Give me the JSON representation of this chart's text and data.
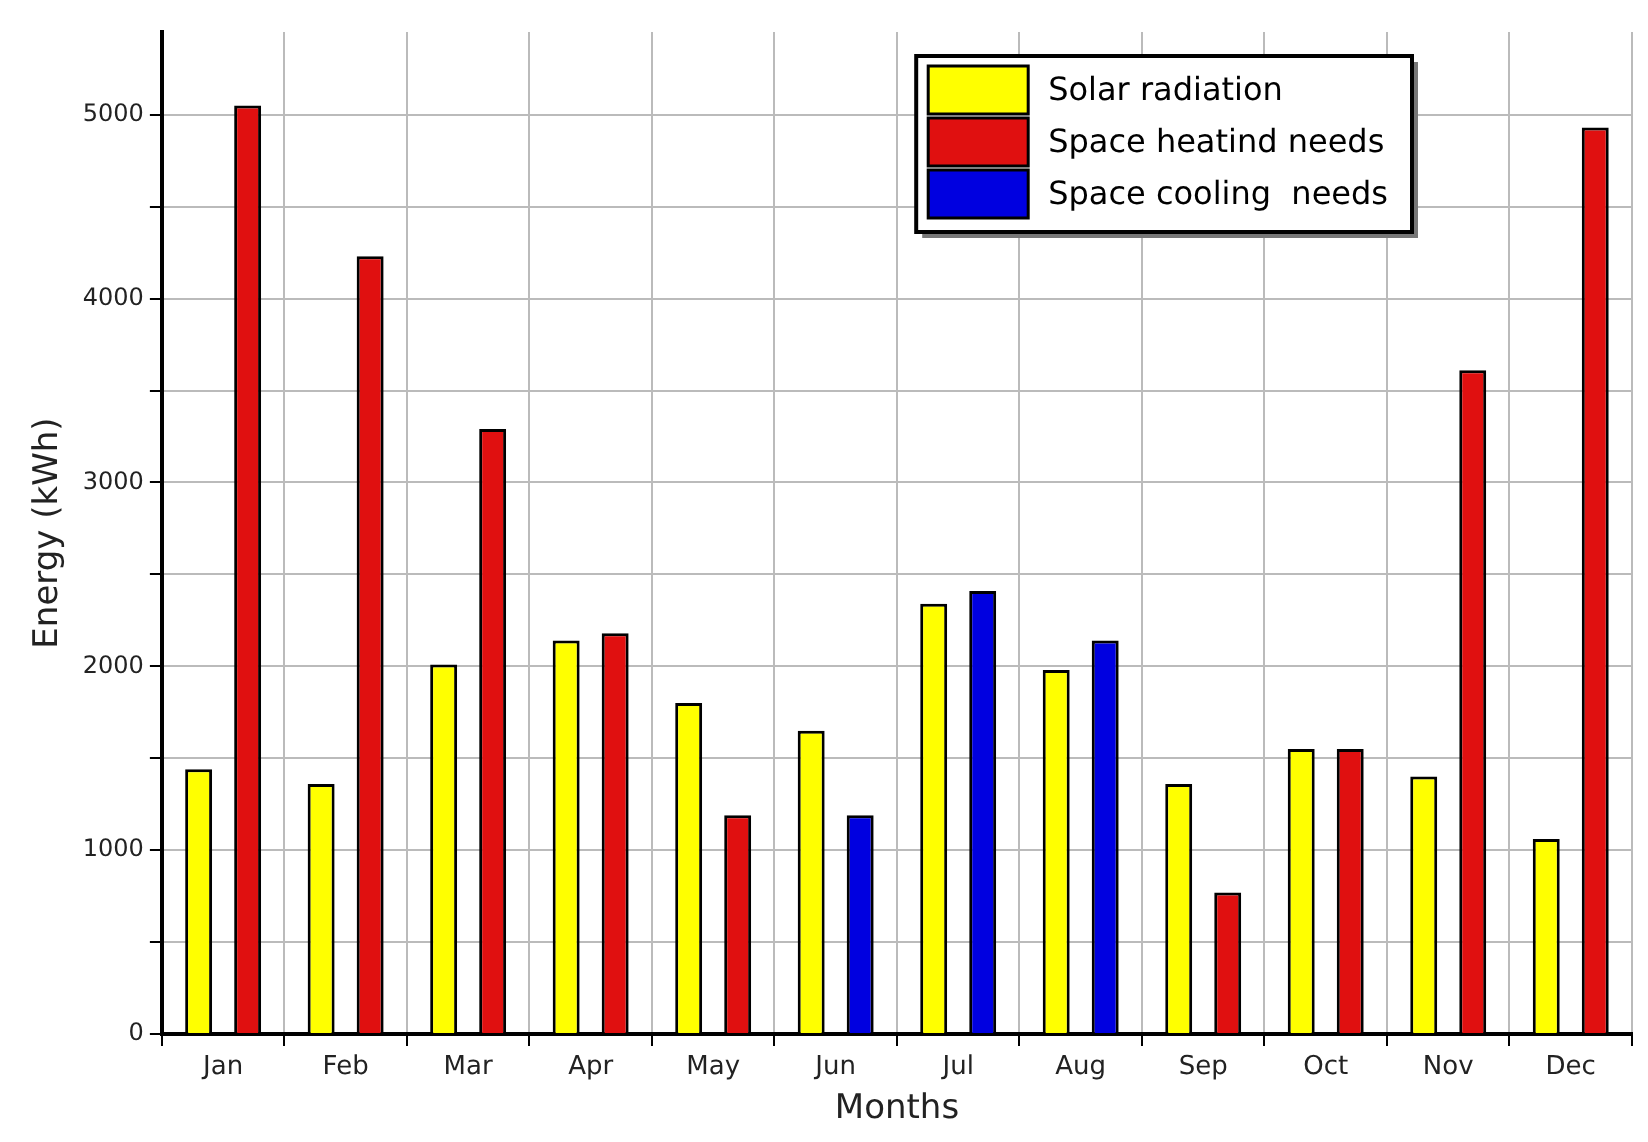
{
  "chart_data": {
    "type": "bar",
    "xlabel": "Months",
    "ylabel": "Energy (kWh)",
    "categories": [
      "Jan",
      "Feb",
      "Mar",
      "Apr",
      "May",
      "Jun",
      "Jul",
      "Aug",
      "Sep",
      "Oct",
      "Nov",
      "Dec"
    ],
    "series": [
      {
        "name": "Solar radiation",
        "color": "#ffff00",
        "values": [
          1440,
          1360,
          2010,
          2140,
          1800,
          1650,
          2340,
          1980,
          1360,
          1550,
          1400,
          1060
        ]
      },
      {
        "name": "Space heatind needs",
        "color": "#e01010",
        "values": [
          5050,
          4230,
          3290,
          2180,
          1190,
          null,
          null,
          null,
          770,
          1550,
          3610,
          4930
        ]
      },
      {
        "name": "Space cooling  needs",
        "color": "#0000e0",
        "values": [
          null,
          null,
          null,
          null,
          null,
          1190,
          2410,
          2140,
          null,
          null,
          null,
          null
        ]
      }
    ],
    "ylim": [
      0,
      5450
    ],
    "yticks": [
      0,
      {
        "value": 500,
        "label": null
      },
      1000,
      {
        "value": 1500,
        "label": null
      },
      2000,
      {
        "value": 2500,
        "label": null
      },
      3000,
      {
        "value": 3500,
        "label": null
      },
      4000,
      {
        "value": 4500,
        "label": null
      },
      5000
    ],
    "grid": true,
    "legend": "top right"
  }
}
